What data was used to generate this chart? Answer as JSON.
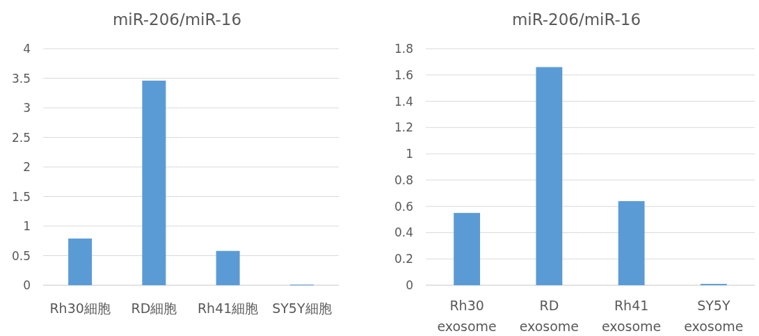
{
  "chart_data": [
    {
      "type": "bar",
      "title": "miR-206/miR-16",
      "categories": [
        "Rh30細胞",
        "RD細胞",
        "Rh41細胞",
        "SY5Y細胞"
      ],
      "values": [
        0.79,
        3.46,
        0.58,
        0.01
      ],
      "color": "#5b9bd5",
      "ylim": [
        0,
        4
      ],
      "yticks": [
        0,
        0.5,
        1,
        1.5,
        2,
        2.5,
        3,
        3.5,
        4
      ],
      "grid": "y"
    },
    {
      "type": "bar",
      "title": "miR-206/miR-16",
      "categories": [
        "Rh30 exosome",
        "RD exosome",
        "Rh41 exosome",
        "SY5Y exosome"
      ],
      "values": [
        0.55,
        1.66,
        0.64,
        0.01
      ],
      "color": "#5b9bd5",
      "ylim": [
        0,
        1.8
      ],
      "yticks": [
        0,
        0.2,
        0.4,
        0.6,
        0.8,
        1,
        1.2,
        1.4,
        1.6,
        1.8
      ],
      "grid": "y"
    }
  ]
}
